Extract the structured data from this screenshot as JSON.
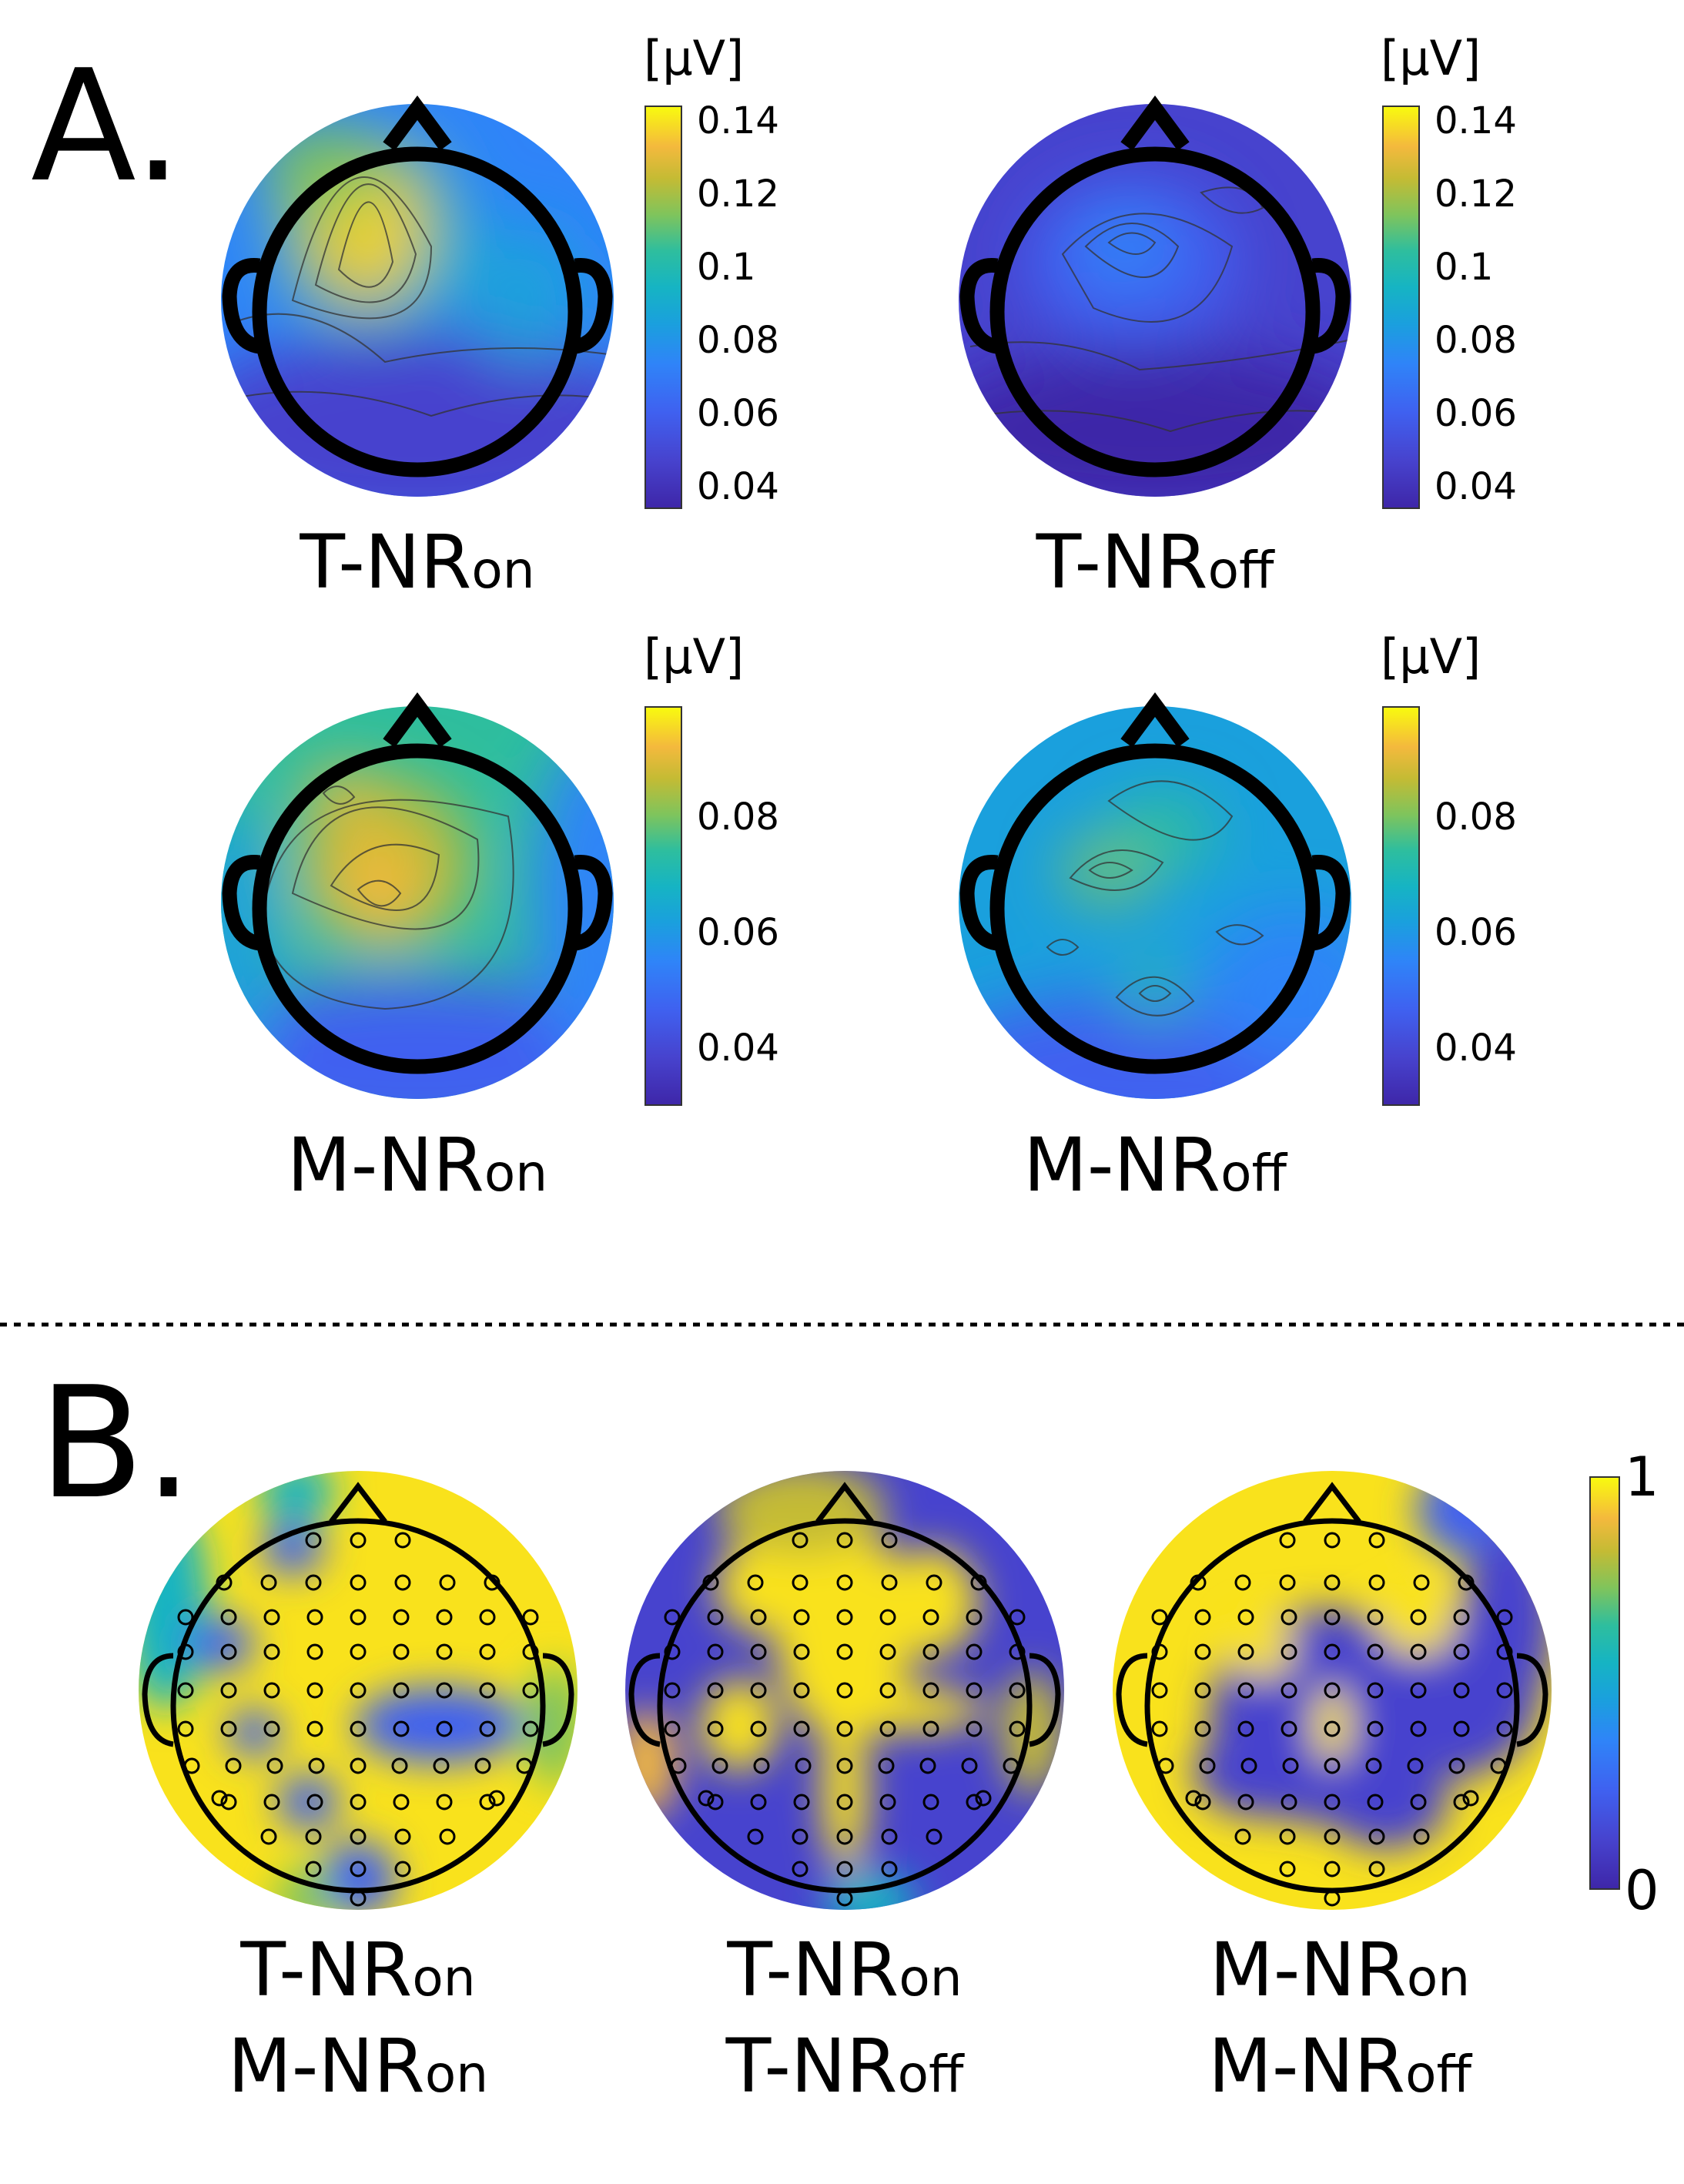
{
  "panelA": {
    "letter": "A.",
    "maps": [
      {
        "label_main": "T-NR",
        "label_sub": "on",
        "colorbar": {
          "unit": "[μV]",
          "ticks": [
            "0.14",
            "0.12",
            "0.1",
            "0.08",
            "0.06",
            "0.04"
          ]
        }
      },
      {
        "label_main": "T-NR",
        "label_sub": "off",
        "colorbar": {
          "unit": "[μV]",
          "ticks": [
            "0.14",
            "0.12",
            "0.1",
            "0.08",
            "0.06",
            "0.04"
          ]
        }
      },
      {
        "label_main": "M-NR",
        "label_sub": "on",
        "colorbar": {
          "unit": "[μV]",
          "ticks": [
            "0.08",
            "0.06",
            "0.04"
          ]
        }
      },
      {
        "label_main": "M-NR",
        "label_sub": "off",
        "colorbar": {
          "unit": "[μV]",
          "ticks": [
            "0.08",
            "0.06",
            "0.04"
          ]
        }
      }
    ]
  },
  "panelB": {
    "letter": "B.",
    "maps": [
      {
        "line1_main": "T-NR",
        "line1_sub": "on",
        "line2_main": "M-NR",
        "line2_sub": "on"
      },
      {
        "line1_main": "T-NR",
        "line1_sub": "on",
        "line2_main": "T-NR",
        "line2_sub": "off"
      },
      {
        "line1_main": "M-NR",
        "line1_sub": "on",
        "line2_main": "M-NR",
        "line2_sub": "off"
      }
    ],
    "colorbar": {
      "ticks": [
        "1",
        "0"
      ]
    }
  },
  "colors": {
    "colormap": [
      "#3e26a8",
      "#4743ce",
      "#3f61f0",
      "#2f84f8",
      "#1aa0dd",
      "#16b4c3",
      "#2ebe9e",
      "#7fc45c",
      "#c4bb34",
      "#f4b93d",
      "#f9d82a",
      "#f9fb0e"
    ]
  },
  "chart_data": [
    {
      "type": "heatmap",
      "title": "",
      "label": "T-NRon",
      "scale_unit": "[μV]",
      "colorbar_ticks": [
        0.14,
        0.12,
        0.1,
        0.08,
        0.06,
        0.04
      ],
      "range": [
        0.035,
        0.145
      ],
      "peaks": [
        {
          "region": "left frontal",
          "value": 0.14
        }
      ],
      "typical_value": 0.06
    },
    {
      "type": "heatmap",
      "title": "",
      "label": "T-NRoff",
      "scale_unit": "[μV]",
      "colorbar_ticks": [
        0.14,
        0.12,
        0.1,
        0.08,
        0.06,
        0.04
      ],
      "range": [
        0.035,
        0.145
      ],
      "peaks": [
        {
          "region": "central frontal",
          "value": 0.07
        }
      ],
      "typical_value": 0.045
    },
    {
      "type": "heatmap",
      "title": "",
      "label": "M-NRon",
      "scale_unit": "[μV]",
      "colorbar_ticks": [
        0.08,
        0.06,
        0.04
      ],
      "range": [
        0.03,
        0.1
      ],
      "peaks": [
        {
          "region": "left central",
          "value": 0.09
        }
      ],
      "typical_value": 0.06
    },
    {
      "type": "heatmap",
      "title": "",
      "label": "M-NRoff",
      "scale_unit": "[μV]",
      "colorbar_ticks": [
        0.08,
        0.06,
        0.04
      ],
      "range": [
        0.03,
        0.1
      ],
      "peaks": [
        {
          "region": "left central",
          "value": 0.08
        }
      ],
      "typical_value": 0.055
    },
    {
      "type": "heatmap",
      "title": "",
      "label": "T-NRon / M-NRon",
      "colorbar_ticks": [
        1,
        0
      ],
      "range": [
        0,
        1
      ],
      "predominant_value": 1
    },
    {
      "type": "heatmap",
      "title": "",
      "label": "T-NRon / T-NRoff",
      "colorbar_ticks": [
        1,
        0
      ],
      "range": [
        0,
        1
      ],
      "predominant_value": 0.4
    },
    {
      "type": "heatmap",
      "title": "",
      "label": "M-NRon / M-NRoff",
      "colorbar_ticks": [
        1,
        0
      ],
      "range": [
        0,
        1
      ],
      "predominant_value": 0.35
    }
  ]
}
